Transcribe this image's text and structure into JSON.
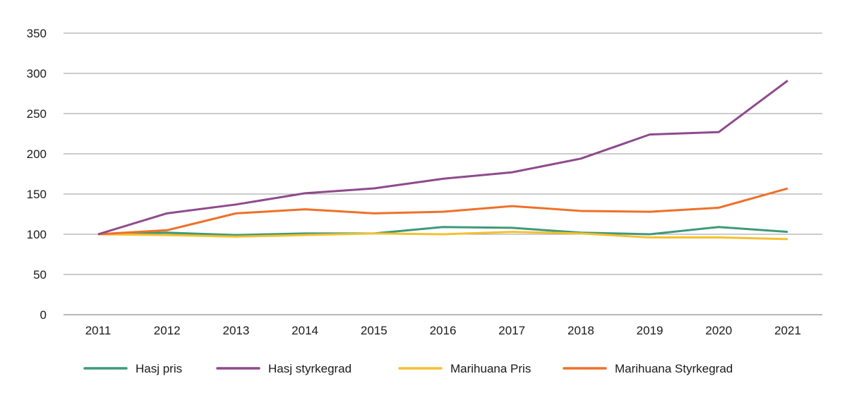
{
  "chart_data": {
    "type": "line",
    "title": "",
    "xlabel": "",
    "ylabel": "",
    "ylim": [
      0,
      350
    ],
    "yticks": [
      0,
      50,
      100,
      150,
      200,
      250,
      300,
      350
    ],
    "grid": true,
    "legend_position": "bottom",
    "x": [
      "2011",
      "2012",
      "2013",
      "2014",
      "2015",
      "2016",
      "2017",
      "2018",
      "2019",
      "2020",
      "2021"
    ],
    "series": [
      {
        "name": "Hasj pris",
        "color": "#3e9a78",
        "values": [
          100,
          102,
          99,
          101,
          101,
          109,
          108,
          102,
          100,
          109,
          103
        ]
      },
      {
        "name": "Hasj styrkegrad",
        "color": "#8e4a8c",
        "values": [
          100,
          126,
          137,
          151,
          157,
          169,
          177,
          194,
          224,
          227,
          291
        ]
      },
      {
        "name": "Marihuana Pris",
        "color": "#f5c030",
        "values": [
          100,
          99,
          97,
          99,
          101,
          100,
          103,
          101,
          96,
          96,
          94
        ]
      },
      {
        "name": "Marihuana Styrkegrad",
        "color": "#ef7029",
        "values": [
          100,
          105,
          126,
          131,
          126,
          128,
          135,
          129,
          128,
          133,
          157
        ]
      }
    ]
  }
}
